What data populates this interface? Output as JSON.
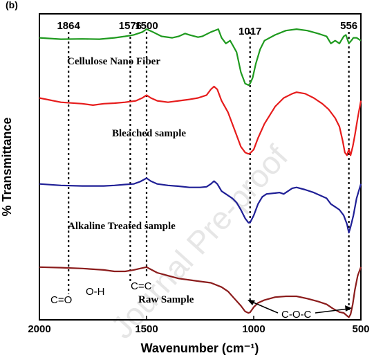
{
  "panel_tag": "(b)",
  "watermark": "Journal Pre-proof",
  "chart_data": {
    "type": "line",
    "xlabel": "Wavenumber (cm⁻¹)",
    "ylabel": "% Transmittance",
    "xlim": [
      2000,
      500
    ],
    "x_reversed": true,
    "ylim": [
      0,
      100
    ],
    "y_ticks_shown": false,
    "x_ticks": [
      {
        "value": 2000,
        "label": "2000"
      },
      {
        "value": 1500,
        "label": "1500"
      },
      {
        "value": 1000,
        "label": "1000"
      },
      {
        "value": 500,
        "label": "500"
      }
    ],
    "peak_markers": [
      {
        "x": 1864,
        "label": "1864"
      },
      {
        "x": 1576,
        "label": "1576"
      },
      {
        "x": 1500,
        "label": "1500"
      },
      {
        "x": 1017,
        "label": "1017"
      },
      {
        "x": 556,
        "label": "556"
      }
    ],
    "band_annotations": [
      {
        "label": "C=O",
        "x": 1864
      },
      {
        "label": "O-H",
        "x": 1576
      },
      {
        "label": "C=C",
        "x": 1500
      },
      {
        "label": "C-O-C",
        "x_from": 1017,
        "x_to": 556
      }
    ],
    "series": [
      {
        "name": "Cellulose Nano Fiber",
        "color": "#1f9a1f",
        "points": [
          [
            2000,
            96
          ],
          [
            1900,
            95.5
          ],
          [
            1800,
            95.6
          ],
          [
            1720,
            95.5
          ],
          [
            1650,
            96
          ],
          [
            1600,
            96.5
          ],
          [
            1560,
            97
          ],
          [
            1520,
            98
          ],
          [
            1500,
            99
          ],
          [
            1470,
            98
          ],
          [
            1430,
            96.5
          ],
          [
            1380,
            96
          ],
          [
            1350,
            96.5
          ],
          [
            1320,
            97.5
          ],
          [
            1300,
            97
          ],
          [
            1260,
            96.2
          ],
          [
            1240,
            96.5
          ],
          [
            1200,
            98
          ],
          [
            1165,
            99
          ],
          [
            1150,
            96
          ],
          [
            1130,
            94
          ],
          [
            1110,
            95
          ],
          [
            1095,
            93
          ],
          [
            1080,
            91
          ],
          [
            1060,
            84
          ],
          [
            1040,
            80
          ],
          [
            1025,
            79.5
          ],
          [
            1017,
            80
          ],
          [
            1005,
            82
          ],
          [
            990,
            87
          ],
          [
            970,
            92
          ],
          [
            950,
            95
          ],
          [
            900,
            97
          ],
          [
            850,
            98.5
          ],
          [
            800,
            99
          ],
          [
            750,
            98.5
          ],
          [
            700,
            97.5
          ],
          [
            660,
            96.5
          ],
          [
            640,
            94
          ],
          [
            620,
            95
          ],
          [
            600,
            94
          ],
          [
            580,
            96.5
          ],
          [
            570,
            97
          ],
          [
            556,
            94
          ],
          [
            545,
            95
          ],
          [
            535,
            96
          ],
          [
            520,
            96
          ],
          [
            500,
            95
          ]
        ]
      },
      {
        "name": "Bleached sample",
        "color": "#e61c1c",
        "points": [
          [
            2000,
            75
          ],
          [
            1900,
            73.5
          ],
          [
            1800,
            73
          ],
          [
            1750,
            72.5
          ],
          [
            1700,
            73
          ],
          [
            1650,
            73.2
          ],
          [
            1600,
            73.5
          ],
          [
            1550,
            74
          ],
          [
            1520,
            75
          ],
          [
            1500,
            76
          ],
          [
            1480,
            75
          ],
          [
            1450,
            74
          ],
          [
            1400,
            73.5
          ],
          [
            1350,
            74
          ],
          [
            1300,
            74.5
          ],
          [
            1260,
            75
          ],
          [
            1220,
            76
          ],
          [
            1200,
            78
          ],
          [
            1185,
            79
          ],
          [
            1170,
            78
          ],
          [
            1150,
            74
          ],
          [
            1120,
            70
          ],
          [
            1100,
            66
          ],
          [
            1080,
            62
          ],
          [
            1060,
            58
          ],
          [
            1040,
            56
          ],
          [
            1025,
            55.5
          ],
          [
            1017,
            55.7
          ],
          [
            1000,
            57
          ],
          [
            980,
            61
          ],
          [
            950,
            66
          ],
          [
            900,
            72
          ],
          [
            860,
            75
          ],
          [
            820,
            76.5
          ],
          [
            800,
            77
          ],
          [
            760,
            76.5
          ],
          [
            720,
            75
          ],
          [
            680,
            73
          ],
          [
            650,
            71
          ],
          [
            620,
            68
          ],
          [
            600,
            65
          ],
          [
            585,
            60
          ],
          [
            575,
            56
          ],
          [
            565,
            55
          ],
          [
            556,
            57
          ],
          [
            548,
            55
          ],
          [
            538,
            58
          ],
          [
            528,
            62
          ],
          [
            515,
            68
          ],
          [
            500,
            74
          ]
        ]
      },
      {
        "name": "Alkaline Treated sample",
        "color": "#1f1f96",
        "points": [
          [
            2000,
            45
          ],
          [
            1900,
            44.5
          ],
          [
            1800,
            44.3
          ],
          [
            1700,
            44.3
          ],
          [
            1650,
            44.5
          ],
          [
            1600,
            44.8
          ],
          [
            1560,
            45
          ],
          [
            1530,
            45.8
          ],
          [
            1500,
            47
          ],
          [
            1480,
            46
          ],
          [
            1450,
            45
          ],
          [
            1400,
            44.5
          ],
          [
            1350,
            44.2
          ],
          [
            1300,
            43.8
          ],
          [
            1250,
            43.8
          ],
          [
            1220,
            44
          ],
          [
            1200,
            45
          ],
          [
            1185,
            46
          ],
          [
            1170,
            45
          ],
          [
            1150,
            42.5
          ],
          [
            1120,
            41
          ],
          [
            1100,
            40
          ],
          [
            1080,
            38.5
          ],
          [
            1060,
            36
          ],
          [
            1040,
            33
          ],
          [
            1025,
            31.5
          ],
          [
            1017,
            31.5
          ],
          [
            1000,
            34
          ],
          [
            980,
            38
          ],
          [
            960,
            40.5
          ],
          [
            940,
            41.5
          ],
          [
            900,
            41.8
          ],
          [
            880,
            42
          ],
          [
            860,
            41.5
          ],
          [
            840,
            42.5
          ],
          [
            820,
            43.5
          ],
          [
            800,
            43.8
          ],
          [
            760,
            43
          ],
          [
            720,
            42
          ],
          [
            690,
            41
          ],
          [
            660,
            40
          ],
          [
            640,
            38
          ],
          [
            620,
            37
          ],
          [
            600,
            36
          ],
          [
            580,
            34
          ],
          [
            565,
            31
          ],
          [
            556,
            28
          ],
          [
            548,
            30
          ],
          [
            535,
            34
          ],
          [
            520,
            40
          ],
          [
            500,
            45
          ]
        ]
      },
      {
        "name": "Raw Sample",
        "color": "#8b1c1c",
        "points": [
          [
            2000,
            16
          ],
          [
            1900,
            15.8
          ],
          [
            1800,
            15.5
          ],
          [
            1700,
            15
          ],
          [
            1650,
            14.5
          ],
          [
            1600,
            14.5
          ],
          [
            1560,
            15
          ],
          [
            1530,
            15.5
          ],
          [
            1500,
            16
          ],
          [
            1480,
            15.2
          ],
          [
            1450,
            14
          ],
          [
            1400,
            13
          ],
          [
            1350,
            12
          ],
          [
            1300,
            11.5
          ],
          [
            1250,
            11
          ],
          [
            1200,
            10.5
          ],
          [
            1150,
            9
          ],
          [
            1120,
            7.5
          ],
          [
            1090,
            5
          ],
          [
            1060,
            2.5
          ],
          [
            1040,
            0.5
          ],
          [
            1025,
            0
          ],
          [
            1017,
            0.2
          ],
          [
            1000,
            2
          ],
          [
            980,
            3.5
          ],
          [
            950,
            4.5
          ],
          [
            900,
            5.5
          ],
          [
            850,
            5.8
          ],
          [
            800,
            5.8
          ],
          [
            750,
            5
          ],
          [
            700,
            4
          ],
          [
            660,
            3
          ],
          [
            630,
            1.5
          ],
          [
            600,
            0.3
          ],
          [
            580,
            0
          ],
          [
            565,
            -1
          ],
          [
            556,
            -1.5
          ],
          [
            548,
            -0.5
          ],
          [
            538,
            3
          ],
          [
            528,
            8
          ],
          [
            515,
            13
          ],
          [
            500,
            16
          ]
        ]
      }
    ]
  }
}
